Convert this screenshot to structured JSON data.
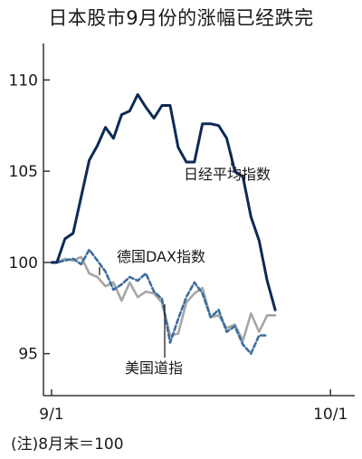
{
  "chart_data": {
    "type": "line",
    "title": "日本股市9月份的涨幅已经跌完",
    "note": "(注)8月末＝100",
    "ylim": [
      92.7,
      112
    ],
    "xlim": [
      -0.6,
      22.5
    ],
    "yticks": [
      95,
      100,
      105,
      110
    ],
    "xticks": [
      {
        "label": "9/1",
        "x": 0
      },
      {
        "label": "10/1",
        "x": 20.7
      }
    ],
    "grid": false,
    "legend": "inline labels",
    "series": [
      {
        "name": "日经平均指数",
        "color": "#0d2a57",
        "style": "solid",
        "x": [
          0,
          0.4,
          1,
          1.6,
          2.2,
          2.8,
          3.4,
          4,
          4.6,
          5.2,
          5.8,
          6.4,
          7,
          7.6,
          8.2,
          8.8,
          9.4,
          10,
          10.6,
          11.2,
          11.8,
          12.4,
          13,
          13.6,
          14.2,
          14.8,
          15.4,
          16,
          16.6,
          17.2,
          17.8,
          18.4,
          19,
          19.6,
          20.2,
          20.8,
          21.4,
          22
        ],
        "values": [
          100.0,
          100.0,
          101.3,
          101.6,
          103.6,
          105.6,
          106.4,
          107.4,
          106.8,
          108.1,
          108.3,
          109.2,
          108.5,
          107.9,
          108.6,
          108.6,
          106.3,
          105.5,
          105.5,
          107.6,
          107.6,
          107.5,
          106.8,
          105.0,
          104.7,
          102.5,
          101.2,
          99.0,
          97.4,
          null,
          null,
          null,
          null,
          null,
          null,
          null,
          null,
          null
        ]
      },
      {
        "name": "德国DAX指数",
        "color": "#3c6d9e",
        "style": "dashed",
        "x": [
          0,
          0.4,
          1,
          1.6,
          2.2,
          2.8,
          3.4,
          4,
          4.6,
          5.2,
          5.8,
          6.4,
          7,
          7.6,
          8.2,
          8.8,
          9.4,
          10,
          10.6,
          11.2,
          11.8,
          12.4,
          13,
          13.6,
          14.2,
          14.8,
          15.4,
          16,
          16.6,
          17.2,
          17.8,
          18.4,
          19,
          19.6,
          20.2,
          20.8,
          21.4,
          22
        ],
        "values": [
          100.0,
          100.0,
          100.1,
          100.2,
          99.9,
          100.7,
          100.1,
          99.5,
          98.5,
          98.8,
          99.2,
          99.0,
          99.4,
          98.4,
          98.0,
          95.6,
          96.9,
          98.1,
          98.9,
          98.3,
          97.0,
          97.4,
          96.2,
          96.5,
          95.5,
          95.0,
          96.0,
          96.0,
          null,
          null,
          null,
          null,
          null,
          null,
          null,
          null,
          null,
          null
        ]
      },
      {
        "name": "美国道指",
        "color": "#a6a6a6",
        "style": "solid",
        "x": [
          0,
          0.4,
          1,
          1.6,
          2.2,
          2.8,
          3.4,
          4,
          4.6,
          5.2,
          5.8,
          6.4,
          7,
          7.6,
          8.2,
          8.8,
          9.4,
          10,
          10.6,
          11.2,
          11.8,
          12.4,
          13,
          13.6,
          14.2,
          14.8,
          15.4,
          16,
          16.6,
          17.2,
          17.8,
          18.4,
          19,
          19.6,
          20.2,
          20.8,
          21.4,
          22
        ],
        "values": [
          100.0,
          100.0,
          100.2,
          100.1,
          100.3,
          99.4,
          99.2,
          98.7,
          98.9,
          97.9,
          98.9,
          98.1,
          98.4,
          98.3,
          97.8,
          96.0,
          96.1,
          97.8,
          98.3,
          98.6,
          97.0,
          97.1,
          96.4,
          96.6,
          95.7,
          97.2,
          96.2,
          97.1,
          97.1,
          null,
          null,
          null,
          null,
          null,
          null,
          null,
          null,
          null
        ]
      }
    ]
  }
}
